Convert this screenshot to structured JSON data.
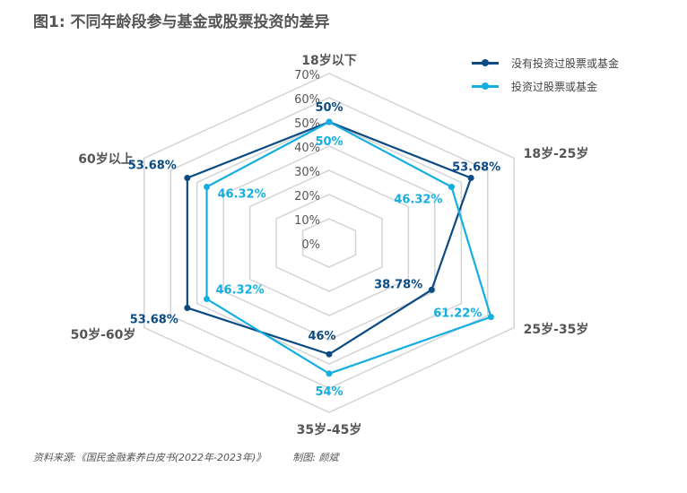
{
  "title": "图1: 不同年龄段参与基金或股票投资的差异",
  "source": "资料来源:《国民金融素养白皮书(2022年-2023年)》",
  "author": "制图: 颜斌",
  "chart_data": {
    "type": "radar",
    "categories": [
      "18岁以下",
      "18岁-25岁",
      "25岁-35岁",
      "35岁-45岁",
      "50岁-60岁",
      "60岁以上"
    ],
    "rlim": [
      0,
      70
    ],
    "ticks": [
      "0%",
      "10%",
      "20%",
      "30%",
      "40%",
      "50%",
      "60%",
      "70%"
    ],
    "legend_position": "top-right",
    "series": [
      {
        "name": "没有投资过股票或基金",
        "color": "#0b4a82",
        "values": [
          50,
          53.68,
          38.78,
          46,
          53.68,
          53.68
        ],
        "labels": [
          "50%",
          "53.68%",
          "38.78%",
          "46%",
          "53.68%",
          "53.68%"
        ]
      },
      {
        "name": "投资过股票或基金",
        "color": "#14aee0",
        "values": [
          50,
          46.32,
          61.22,
          54,
          46.32,
          46.32
        ],
        "labels": [
          "50%",
          "46.32%",
          "61.22%",
          "54%",
          "46.32%",
          "46.32%"
        ]
      }
    ]
  }
}
